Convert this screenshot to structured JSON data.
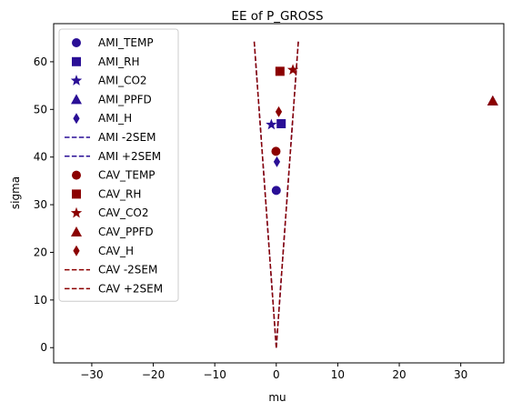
{
  "chart_data": {
    "type": "scatter",
    "title": "EE of P_GROSS",
    "xlabel": "mu",
    "ylabel": "sigma",
    "xlim": [
      -36.2,
      37.0
    ],
    "ylim": [
      -3.2,
      68.0
    ],
    "xticks": [
      -30,
      -20,
      -10,
      0,
      10,
      20,
      30
    ],
    "yticks": [
      0,
      10,
      20,
      30,
      40,
      50,
      60
    ],
    "grid": false,
    "legend_position": "upper-left",
    "colors": {
      "AMI": "#2a0f96",
      "CAV": "#8b0000"
    },
    "series": [
      {
        "name": "AMI_TEMP",
        "group": "AMI",
        "marker": "circle",
        "x": 0.0,
        "y": 33.0
      },
      {
        "name": "AMI_RH",
        "group": "AMI",
        "marker": "square",
        "x": 0.8,
        "y": 47.0
      },
      {
        "name": "AMI_CO2",
        "group": "AMI",
        "marker": "star",
        "x": -0.8,
        "y": 46.8
      },
      {
        "name": "AMI_PPFD",
        "group": "AMI",
        "marker": "triangle",
        "x": 35.2,
        "y": 51.8
      },
      {
        "name": "AMI_H",
        "group": "AMI",
        "marker": "diamond",
        "x": 0.1,
        "y": 39.0
      },
      {
        "name": "AMI -2SEM",
        "group": "AMI",
        "marker": "line",
        "points": [
          [
            0.0,
            0.0
          ],
          [
            -3.6,
            64.5
          ]
        ]
      },
      {
        "name": "AMI +2SEM",
        "group": "AMI",
        "marker": "line",
        "points": [
          [
            0.0,
            0.0
          ],
          [
            3.6,
            64.5
          ]
        ]
      },
      {
        "name": "CAV_TEMP",
        "group": "CAV",
        "marker": "circle",
        "x": -0.05,
        "y": 41.2
      },
      {
        "name": "CAV_RH",
        "group": "CAV",
        "marker": "square",
        "x": 0.6,
        "y": 58.0
      },
      {
        "name": "CAV_CO2",
        "group": "CAV",
        "marker": "star",
        "x": 2.7,
        "y": 58.3
      },
      {
        "name": "CAV_PPFD",
        "group": "CAV",
        "marker": "triangle",
        "x": 35.2,
        "y": 51.8
      },
      {
        "name": "CAV_H",
        "group": "CAV",
        "marker": "diamond",
        "x": 0.4,
        "y": 49.5
      },
      {
        "name": "CAV -2SEM",
        "group": "CAV",
        "marker": "line",
        "points": [
          [
            0.0,
            0.0
          ],
          [
            -3.6,
            64.5
          ]
        ]
      },
      {
        "name": "CAV +2SEM",
        "group": "CAV",
        "marker": "line",
        "points": [
          [
            0.0,
            0.0
          ],
          [
            3.6,
            64.5
          ]
        ]
      }
    ]
  }
}
